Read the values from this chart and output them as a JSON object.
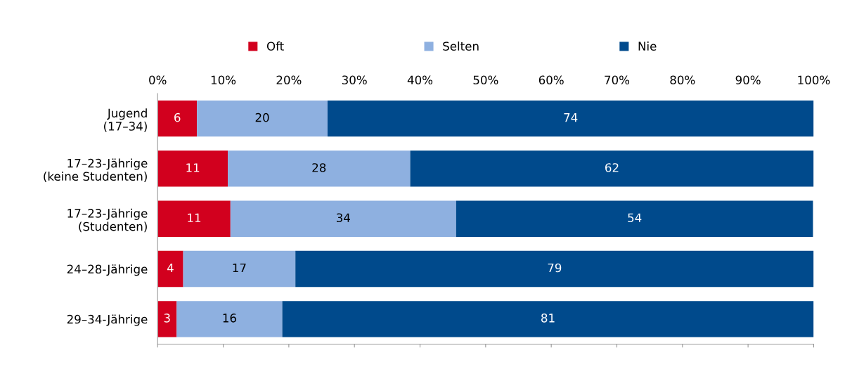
{
  "chart_data": {
    "type": "bar",
    "orientation": "horizontal",
    "stacked": true,
    "categories": [
      "Jugend\n(17–34)",
      "17–23-Jährige\n(keine Studenten)",
      "17–23-Jährige\n(Studenten)",
      "24–28-Jährige",
      "29–34-Jährige"
    ],
    "series": [
      {
        "name": "Oft",
        "color": "#d2001e",
        "values": [
          6.0,
          10.7,
          11.1,
          3.9,
          2.9
        ],
        "value_labels": [
          "6",
          "11",
          "11",
          "4",
          "3"
        ]
      },
      {
        "name": "Selten",
        "color": "#8eb0e0",
        "values": [
          19.9,
          27.8,
          34.4,
          17.1,
          16.1
        ],
        "value_labels": [
          "20",
          "28",
          "34",
          "17",
          "16"
        ]
      },
      {
        "name": "Nie",
        "color": "#004a8c",
        "values": [
          74.1,
          61.5,
          54.4,
          79.0,
          81.0
        ],
        "value_labels": [
          "74",
          "62",
          "54",
          "79",
          "81"
        ]
      }
    ],
    "xlim": [
      0,
      100
    ],
    "xticks": [
      {
        "value": 0,
        "label": "0%"
      },
      {
        "value": 10,
        "label": "10%"
      },
      {
        "value": 20,
        "label": "20%"
      },
      {
        "value": 30,
        "label": "30%"
      },
      {
        "value": 40,
        "label": "40%"
      },
      {
        "value": 50,
        "label": "50%"
      },
      {
        "value": 60,
        "label": "60%"
      },
      {
        "value": 70,
        "label": "70%"
      },
      {
        "value": 80,
        "label": "80%"
      },
      {
        "value": 90,
        "label": "90%"
      },
      {
        "value": 100,
        "label": "100%"
      }
    ],
    "grid": false,
    "legend": "top"
  }
}
